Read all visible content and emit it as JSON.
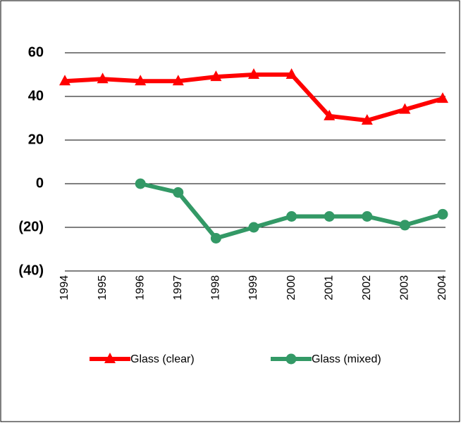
{
  "chart_data": {
    "type": "line",
    "categories": [
      "1994",
      "1995",
      "1996",
      "1997",
      "1998",
      "1999",
      "2000",
      "2001",
      "2002",
      "2003",
      "2004"
    ],
    "series": [
      {
        "name": "Glass (clear)",
        "color": "#ff0000",
        "marker": "triangle",
        "values": [
          47,
          48,
          47,
          47,
          49,
          50,
          50,
          31,
          29,
          34,
          39
        ]
      },
      {
        "name": "Glass (mixed)",
        "color": "#339966",
        "marker": "circle",
        "values": [
          null,
          null,
          0,
          -4,
          -25,
          -20,
          -15,
          -15,
          -15,
          -19,
          -14
        ]
      }
    ],
    "ylim": [
      -40,
      60
    ],
    "yticks": [
      {
        "value": -40,
        "label": "(40)"
      },
      {
        "value": -20,
        "label": "(20)"
      },
      0,
      20,
      40,
      60
    ],
    "grid": true,
    "legend": "bottom"
  }
}
